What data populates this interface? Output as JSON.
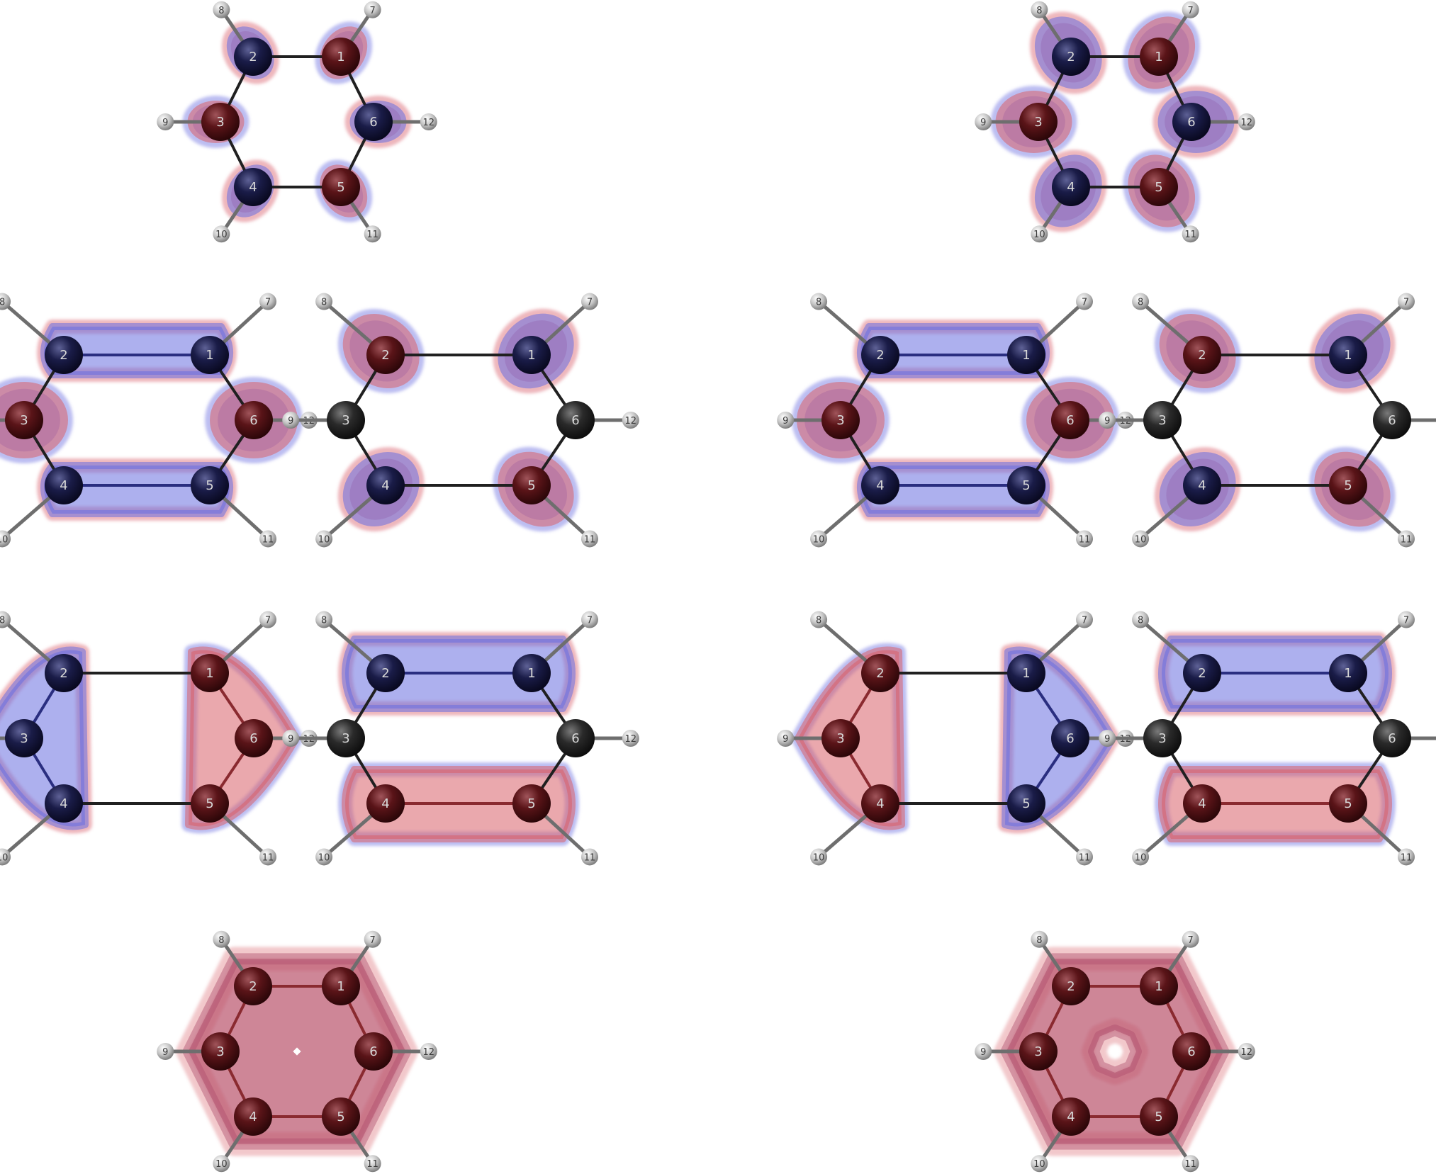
{
  "atom_labels": {
    "carbon": [
      "1",
      "2",
      "3",
      "4",
      "5",
      "6"
    ],
    "hydrogen": [
      "7",
      "8",
      "9",
      "10",
      "11",
      "12"
    ]
  },
  "colors": {
    "positive_lobe": "#d9606a",
    "negative_lobe": "#6a6fe0",
    "carbon_positive": "#5a1418",
    "carbon_negative": "#1a1c48",
    "carbon_neutral": "#262626",
    "hydrogen": "#bdbdbd",
    "bond": "#202020"
  },
  "panels": [
    {
      "phases": [
        "+",
        "-",
        "+",
        "-",
        "+",
        "-"
      ],
      "lobes": "atomic-small"
    },
    {
      "phases": [
        "+",
        "-",
        "+",
        "-",
        "+",
        "-"
      ],
      "lobes": "atomic-large"
    },
    {
      "phases": [
        "-",
        "-",
        "+",
        "-",
        "-",
        "+"
      ],
      "lobes": "pair-bonds"
    },
    {
      "phases": [
        "-",
        "+",
        "0",
        "-",
        "+",
        "0"
      ],
      "lobes": "atomic"
    },
    {
      "phases": [
        "-",
        "-",
        "+",
        "-",
        "-",
        "+"
      ],
      "lobes": "pair-bonds"
    },
    {
      "phases": [
        "-",
        "+",
        "0",
        "-",
        "+",
        "0"
      ],
      "lobes": "atomic"
    },
    {
      "phases": [
        "+",
        "-",
        "-",
        "-",
        "+",
        "+"
      ],
      "lobes": "triad"
    },
    {
      "phases": [
        "-",
        "-",
        "0",
        "+",
        "+",
        "0"
      ],
      "lobes": "pair-bonds"
    },
    {
      "phases": [
        "-",
        "+",
        "+",
        "+",
        "-",
        "-"
      ],
      "lobes": "triad"
    },
    {
      "phases": [
        "-",
        "-",
        "0",
        "+",
        "+",
        "0"
      ],
      "lobes": "pair-bonds"
    },
    {
      "phases": [
        "+",
        "+",
        "+",
        "+",
        "+",
        "+"
      ],
      "lobes": "ring"
    },
    {
      "phases": [
        "+",
        "+",
        "+",
        "+",
        "+",
        "+"
      ],
      "lobes": "ring-hole"
    }
  ]
}
